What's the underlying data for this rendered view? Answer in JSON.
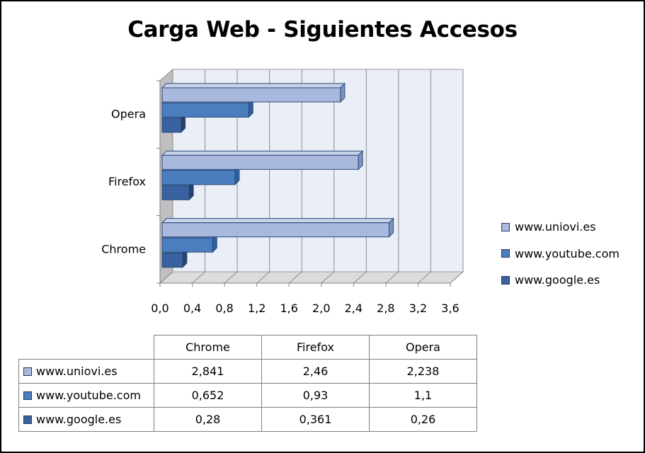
{
  "chart_data": {
    "type": "bar",
    "orientation": "horizontal",
    "title": "Carga Web - Siguientes Accesos",
    "categories": [
      "Chrome",
      "Firefox",
      "Opera"
    ],
    "series": [
      {
        "name": "www.uniovi.es",
        "values": [
          2.841,
          2.46,
          2.238
        ],
        "color": "#a9b8dd"
      },
      {
        "name": "www.youtube.com",
        "values": [
          0.652,
          0.93,
          1.1
        ],
        "color": "#4a7ebf"
      },
      {
        "name": "www.google.es",
        "values": [
          0.28,
          0.361,
          0.26
        ],
        "color": "#3a62a0"
      }
    ],
    "x_ticks": [
      "0,0",
      "0,4",
      "0,8",
      "1,2",
      "1,6",
      "2,0",
      "2,4",
      "2,8",
      "3,2",
      "3,6"
    ],
    "xlim": [
      0,
      3.6
    ],
    "grid": true,
    "legend_position": "right",
    "three_d": true
  },
  "table": {
    "columns": [
      "Chrome",
      "Firefox",
      "Opera"
    ],
    "rows": [
      {
        "series": "www.uniovi.es",
        "cells": [
          "2,841",
          "2,46",
          "2,238"
        ]
      },
      {
        "series": "www.youtube.com",
        "cells": [
          "0,652",
          "0,93",
          "1,1"
        ]
      },
      {
        "series": "www.google.es",
        "cells": [
          "0,28",
          "0,361",
          "0,26"
        ]
      }
    ]
  }
}
